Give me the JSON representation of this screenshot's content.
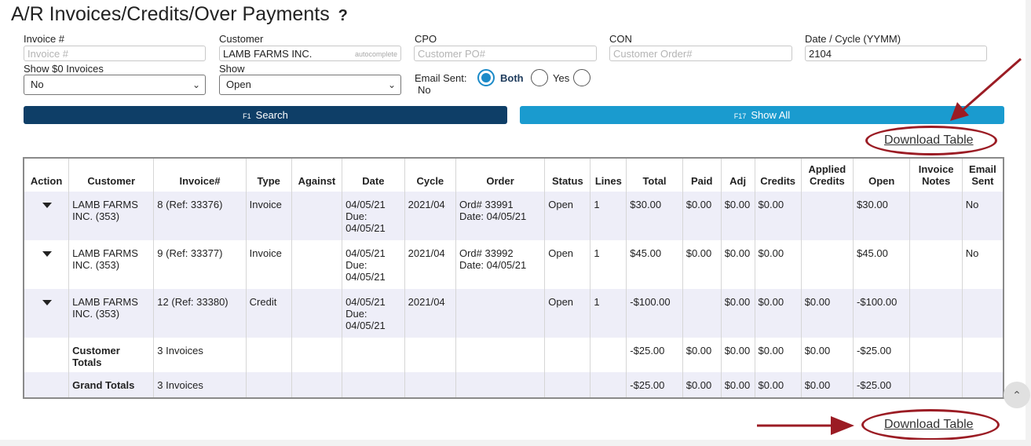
{
  "page": {
    "title": "A/R Invoices/Credits/Over Payments",
    "help_label": "?"
  },
  "filters": {
    "invoice": {
      "label": "Invoice #",
      "placeholder": "Invoice #"
    },
    "customer": {
      "label": "Customer",
      "value": "LAMB FARMS INC.",
      "hint": "autocomplete"
    },
    "cpo": {
      "label": "CPO",
      "placeholder": "Customer PO#"
    },
    "con": {
      "label": "CON",
      "placeholder": "Customer Order#"
    },
    "date_cycle": {
      "label": "Date / Cycle (YYMM)",
      "value": "2104"
    },
    "show_zero": {
      "label": "Show $0 Invoices",
      "value": "No"
    },
    "show": {
      "label": "Show",
      "value": "Open"
    },
    "email_sent": {
      "label": "Email Sent:",
      "options": [
        "Both",
        "Yes",
        "No"
      ],
      "selected": "Both"
    }
  },
  "buttons": {
    "search": {
      "key": "F1",
      "label": "Search"
    },
    "show_all": {
      "key": "F17",
      "label": "Show All"
    }
  },
  "download_label": "Download Table",
  "colors": {
    "accent_dark": "#0e3e67",
    "accent_light": "#1a9bcf",
    "annotation": "#9b1c24",
    "row_shade": "#eeeef8"
  },
  "table": {
    "headers": [
      "Action",
      "Customer",
      "Invoice#",
      "Type",
      "Against",
      "Date",
      "Cycle",
      "Order",
      "Status",
      "Lines",
      "Total",
      "Paid",
      "Adj",
      "Credits",
      "Applied Credits",
      "Open",
      "Invoice Notes",
      "Email Sent"
    ],
    "rows": [
      {
        "customer": "LAMB FARMS INC. (353)",
        "invoice": "8 (Ref: 33376)",
        "type": "Invoice",
        "against": "",
        "date": "04/05/21",
        "due": "Due: 04/05/21",
        "cycle": "2021/04",
        "order": "Ord# 33991",
        "order_date": "Date: 04/05/21",
        "status": "Open",
        "lines": "1",
        "total": "$30.00",
        "paid": "$0.00",
        "adj": "$0.00",
        "credits": "$0.00",
        "applied": "",
        "open": "$30.00",
        "notes": "",
        "email": "No"
      },
      {
        "customer": "LAMB FARMS INC. (353)",
        "invoice": "9 (Ref: 33377)",
        "type": "Invoice",
        "against": "",
        "date": "04/05/21",
        "due": "Due: 04/05/21",
        "cycle": "2021/04",
        "order": "Ord# 33992",
        "order_date": "Date: 04/05/21",
        "status": "Open",
        "lines": "1",
        "total": "$45.00",
        "paid": "$0.00",
        "adj": "$0.00",
        "credits": "$0.00",
        "applied": "",
        "open": "$45.00",
        "notes": "",
        "email": "No"
      },
      {
        "customer": "LAMB FARMS INC. (353)",
        "invoice": "12 (Ref: 33380)",
        "type": "Credit",
        "against": "",
        "date": "04/05/21",
        "due": "Due: 04/05/21",
        "cycle": "2021/04",
        "order": "",
        "order_date": "",
        "status": "Open",
        "lines": "1",
        "total": "-$100.00",
        "paid": "",
        "adj": "$0.00",
        "credits": "$0.00",
        "applied": "$0.00",
        "open": "-$100.00",
        "notes": "",
        "email": ""
      }
    ],
    "customer_totals": {
      "label": "Customer Totals",
      "count": "3 Invoices",
      "total": "-$25.00",
      "paid": "$0.00",
      "adj": "$0.00",
      "credits": "$0.00",
      "applied": "$0.00",
      "open": "-$25.00"
    },
    "grand_totals": {
      "label": "Grand Totals",
      "count": "3 Invoices",
      "total": "-$25.00",
      "paid": "$0.00",
      "adj": "$0.00",
      "credits": "$0.00",
      "applied": "$0.00",
      "open": "-$25.00"
    }
  }
}
